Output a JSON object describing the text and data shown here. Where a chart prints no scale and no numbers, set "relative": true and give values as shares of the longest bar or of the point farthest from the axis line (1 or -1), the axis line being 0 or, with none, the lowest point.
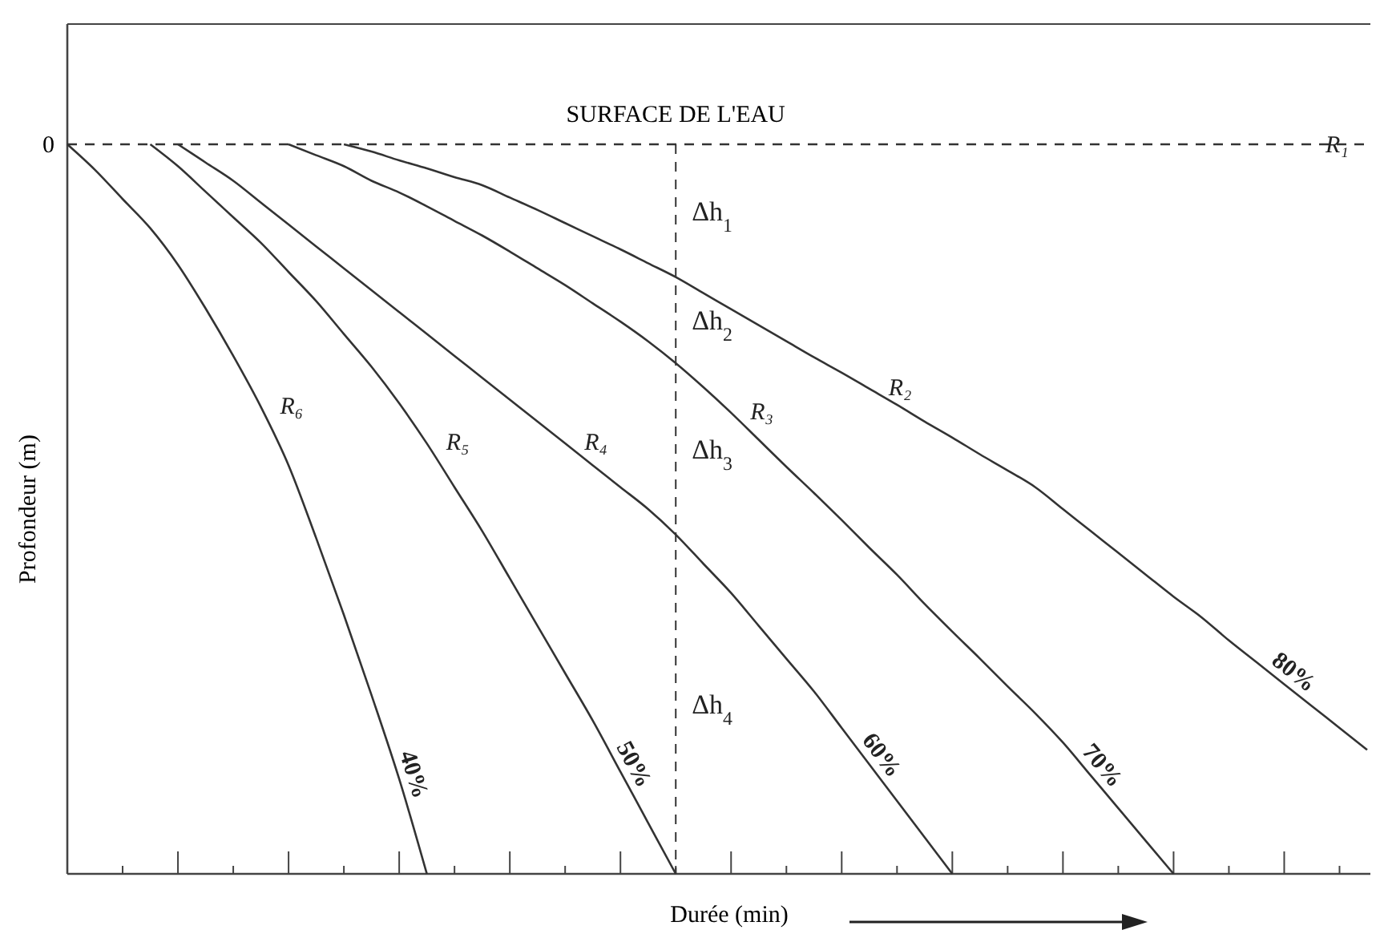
{
  "chart_data": {
    "type": "line",
    "relative": true,
    "xlabel": "Durée (min)",
    "ylabel": "Profondeur (m)",
    "categories": [
      null,
      null,
      null,
      null,
      null,
      null,
      null,
      null,
      null,
      null,
      null,
      null,
      null,
      null,
      null,
      null,
      null,
      null,
      null,
      null,
      null,
      null,
      null,
      null,
      null,
      null,
      null,
      null,
      null,
      null,
      null,
      null,
      null,
      null,
      null,
      null,
      null,
      null,
      null,
      null,
      null,
      null,
      null,
      null,
      null,
      null,
      null,
      null
    ],
    "series": [
      {
        "name": "R₁",
        "color": "#333333",
        "line_style": "dashed",
        "values": [
          0,
          0,
          0,
          0,
          0,
          0,
          0,
          0,
          0,
          0,
          0,
          0,
          0,
          0,
          0,
          0,
          0,
          0,
          0,
          0,
          0,
          0,
          0,
          0,
          0,
          0,
          0,
          0,
          0,
          0,
          0,
          0,
          0,
          0,
          0,
          0,
          0,
          0,
          0,
          0,
          0,
          0,
          0,
          0,
          0,
          0,
          0,
          0
        ]
      },
      {
        "name": "R₂",
        "color": "#333333",
        "values": [
          null,
          null,
          null,
          null,
          null,
          null,
          null,
          null,
          null,
          null,
          0,
          -0.01,
          -0.022,
          -0.033,
          -0.045,
          -0.056,
          -0.073,
          -0.09,
          -0.108,
          -0.126,
          -0.144,
          -0.163,
          -0.182,
          -0.204,
          -0.226,
          -0.248,
          -0.27,
          -0.292,
          -0.313,
          -0.335,
          -0.357,
          -0.38,
          -0.402,
          -0.425,
          -0.447,
          -0.47,
          -0.5,
          -0.53,
          -0.56,
          -0.59,
          -0.62,
          -0.648,
          -0.68,
          -0.71,
          -0.74,
          -0.77,
          -0.8,
          -0.83
        ]
      },
      {
        "name": "R₃",
        "color": "#333333",
        "values": [
          null,
          null,
          null,
          null,
          null,
          null,
          null,
          null,
          0,
          -0.015,
          -0.03,
          -0.05,
          -0.066,
          -0.085,
          -0.105,
          -0.125,
          -0.147,
          -0.17,
          -0.193,
          -0.218,
          -0.243,
          -0.27,
          -0.3,
          -0.333,
          -0.368,
          -0.405,
          -0.442,
          -0.478,
          -0.515,
          -0.553,
          -0.59,
          -0.63,
          -0.668,
          -0.705,
          -0.743,
          -0.78,
          -0.82,
          -0.865,
          -0.91,
          -0.955,
          -1,
          null,
          null,
          null,
          null,
          null,
          null,
          null
        ]
      },
      {
        "name": "R₄",
        "color": "#333333",
        "values": [
          null,
          null,
          null,
          null,
          0,
          -0.025,
          -0.05,
          -0.08,
          -0.11,
          -0.14,
          -0.17,
          -0.2,
          -0.23,
          -0.26,
          -0.29,
          -0.32,
          -0.35,
          -0.38,
          -0.41,
          -0.44,
          -0.47,
          -0.5,
          -0.535,
          -0.575,
          -0.615,
          -0.66,
          -0.705,
          -0.75,
          -0.8,
          -0.85,
          -0.9,
          -0.95,
          -1,
          null,
          null,
          null,
          null,
          null,
          null,
          null,
          null,
          null,
          null,
          null,
          null,
          null,
          null,
          null
        ]
      },
      {
        "name": "R₅",
        "color": "#333333",
        "values": [
          null,
          null,
          null,
          0,
          -0.03,
          -0.065,
          -0.1,
          -0.135,
          -0.175,
          -0.215,
          -0.26,
          -0.305,
          -0.355,
          -0.41,
          -0.47,
          -0.53,
          -0.595,
          -0.66,
          -0.725,
          -0.79,
          -0.86,
          -0.93,
          -1,
          null,
          null,
          null,
          null,
          null,
          null,
          null,
          null,
          null,
          null,
          null,
          null,
          null,
          null,
          null,
          null,
          null,
          null,
          null,
          null,
          null,
          null,
          null,
          null,
          null
        ]
      },
      {
        "name": "R₆",
        "color": "#333333",
        "values": [
          0,
          -0.035,
          -0.075,
          -0.115,
          -0.165,
          -0.225,
          -0.29,
          -0.36,
          -0.44,
          -0.54,
          -0.645,
          -0.755,
          -0.87,
          -1,
          null,
          null,
          null,
          null,
          null,
          null,
          null,
          null,
          null,
          null,
          null,
          null,
          null,
          null,
          null,
          null,
          null,
          null,
          null,
          null,
          null,
          null,
          null,
          null,
          null,
          null,
          null,
          null,
          null,
          null,
          null,
          null,
          null,
          null
        ]
      }
    ],
    "annotations": [
      "SURFACE DE L'EAU",
      "0",
      "Δh$_{1}$",
      "Δh$_{2}$",
      "Δh$_{3}$",
      "Δh$_{4}$",
      "40%",
      "50%",
      "60%",
      "70%",
      "80%"
    ]
  }
}
